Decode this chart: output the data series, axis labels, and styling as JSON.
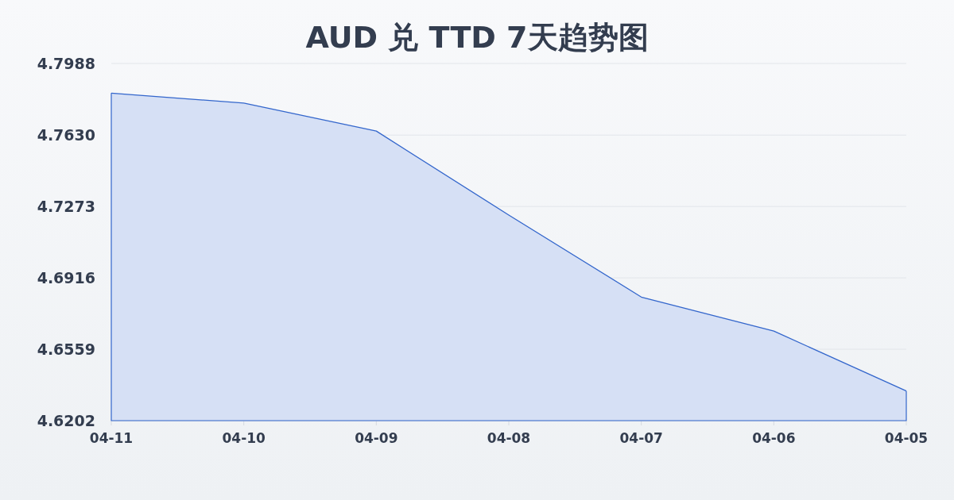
{
  "chart_data": {
    "type": "area",
    "title": "AUD 兑 TTD 7天趋势图",
    "categories": [
      "04-11",
      "04-10",
      "04-09",
      "04-08",
      "04-07",
      "04-06",
      "04-05"
    ],
    "values": [
      4.784,
      4.779,
      4.765,
      4.723,
      4.682,
      4.665,
      4.635
    ],
    "color": "#3366cc",
    "ylim": [
      4.6202,
      4.7988
    ],
    "yticks": [
      4.6202,
      4.6559,
      4.6916,
      4.7273,
      {
        "value": 4.763,
        "label": "4.7630"
      },
      4.7988
    ],
    "grid": "y"
  }
}
